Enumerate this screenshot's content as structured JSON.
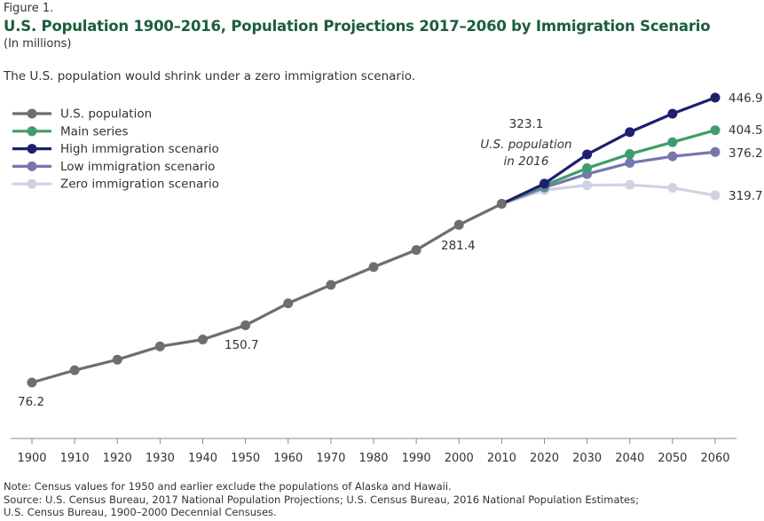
{
  "figure_label": "Figure 1.",
  "chart_data": {
    "type": "line",
    "title": "U.S. Population 1900–2016, Population Projections 2017–2060 by Immigration Scenario",
    "units": "(In millions)",
    "subtitle": "The U.S. population would shrink under a zero immigration scenario.",
    "xlabel": "",
    "ylabel": "",
    "x_ticks": [
      "1900",
      "1910",
      "1920",
      "1930",
      "1940",
      "1950",
      "1960",
      "1970",
      "1980",
      "1990",
      "2000",
      "2010",
      "2020",
      "2030",
      "2040",
      "2050",
      "2060"
    ],
    "ylim": [
      60,
      460
    ],
    "grid": false,
    "legend_position": "top-left",
    "series": [
      {
        "name": "U.S. population",
        "color": "#6e6e70",
        "x": [
          1900,
          1910,
          1920,
          1930,
          1940,
          1950,
          1960,
          1970,
          1980,
          1990,
          2000,
          2010
        ],
        "values": [
          76.2,
          92.2,
          106.0,
          123.2,
          132.2,
          150.7,
          179.3,
          203.2,
          226.5,
          248.7,
          281.4,
          308.7
        ]
      },
      {
        "name": "Main series",
        "color": "#3d9e6c",
        "x": [
          2010,
          2020,
          2030,
          2040,
          2050,
          2060
        ],
        "values": [
          308.7,
          332.6,
          355.1,
          373.5,
          388.9,
          404.5
        ]
      },
      {
        "name": "High immigration scenario",
        "color": "#1f1f6e",
        "x": [
          2010,
          2020,
          2030,
          2040,
          2050,
          2060
        ],
        "values": [
          308.7,
          335.0,
          373.0,
          402.0,
          426.0,
          446.9
        ]
      },
      {
        "name": "Low immigration scenario",
        "color": "#7777ae",
        "x": [
          2010,
          2020,
          2030,
          2040,
          2050,
          2060
        ],
        "values": [
          308.7,
          330.0,
          347.5,
          362.0,
          370.5,
          376.2
        ]
      },
      {
        "name": "Zero immigration scenario",
        "color": "#d0d1e2",
        "x": [
          2010,
          2020,
          2030,
          2040,
          2050,
          2060
        ],
        "values": [
          308.7,
          326.5,
          333.0,
          333.5,
          329.5,
          319.7
        ]
      }
    ],
    "annotations": [
      {
        "text": "76.2"
      },
      {
        "text": "150.7"
      },
      {
        "text": "281.4"
      },
      {
        "text": "323.1"
      },
      {
        "text": "U.S. population"
      },
      {
        "text": "in 2016"
      },
      {
        "text": "446.9"
      },
      {
        "text": "404.5"
      },
      {
        "text": "376.2"
      },
      {
        "text": "319.7"
      }
    ]
  },
  "notes": [
    "Note: Census values for 1950 and earlier exclude the populations of Alaska and Hawaii.",
    "Source: U.S. Census Bureau, 2017 National Population Projections; U.S. Census Bureau, 2016 National Population Estimates;",
    "U.S. Census Bureau, 1900–2000 Decennial Censuses."
  ]
}
